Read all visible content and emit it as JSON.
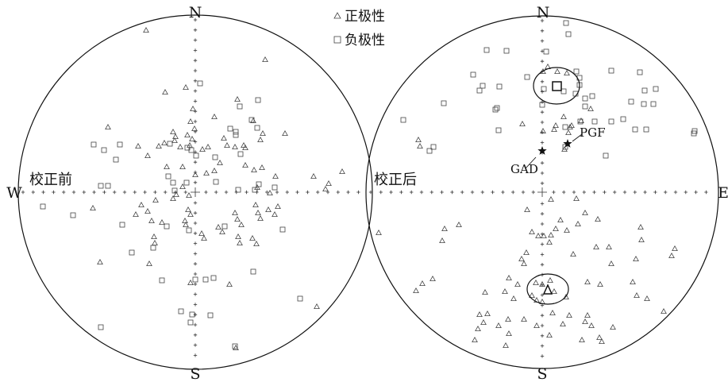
{
  "chart_data": [
    {
      "type": "scatter",
      "projection": "equal-area stereonet",
      "label": "校正前",
      "directions": {
        "north": "N",
        "south": "S",
        "west": "W"
      }
    },
    {
      "type": "scatter",
      "projection": "equal-area stereonet",
      "label": "校正后",
      "directions": {
        "north": "N",
        "south": "S",
        "east": "E"
      },
      "annotations": [
        {
          "label": "GAD"
        },
        {
          "label": "PGF"
        }
      ]
    }
  ],
  "legend": {
    "placement": "top-center",
    "items": [
      {
        "symbol": "triangle",
        "label": "正极性"
      },
      {
        "symbol": "square",
        "label": "负极性"
      }
    ]
  }
}
